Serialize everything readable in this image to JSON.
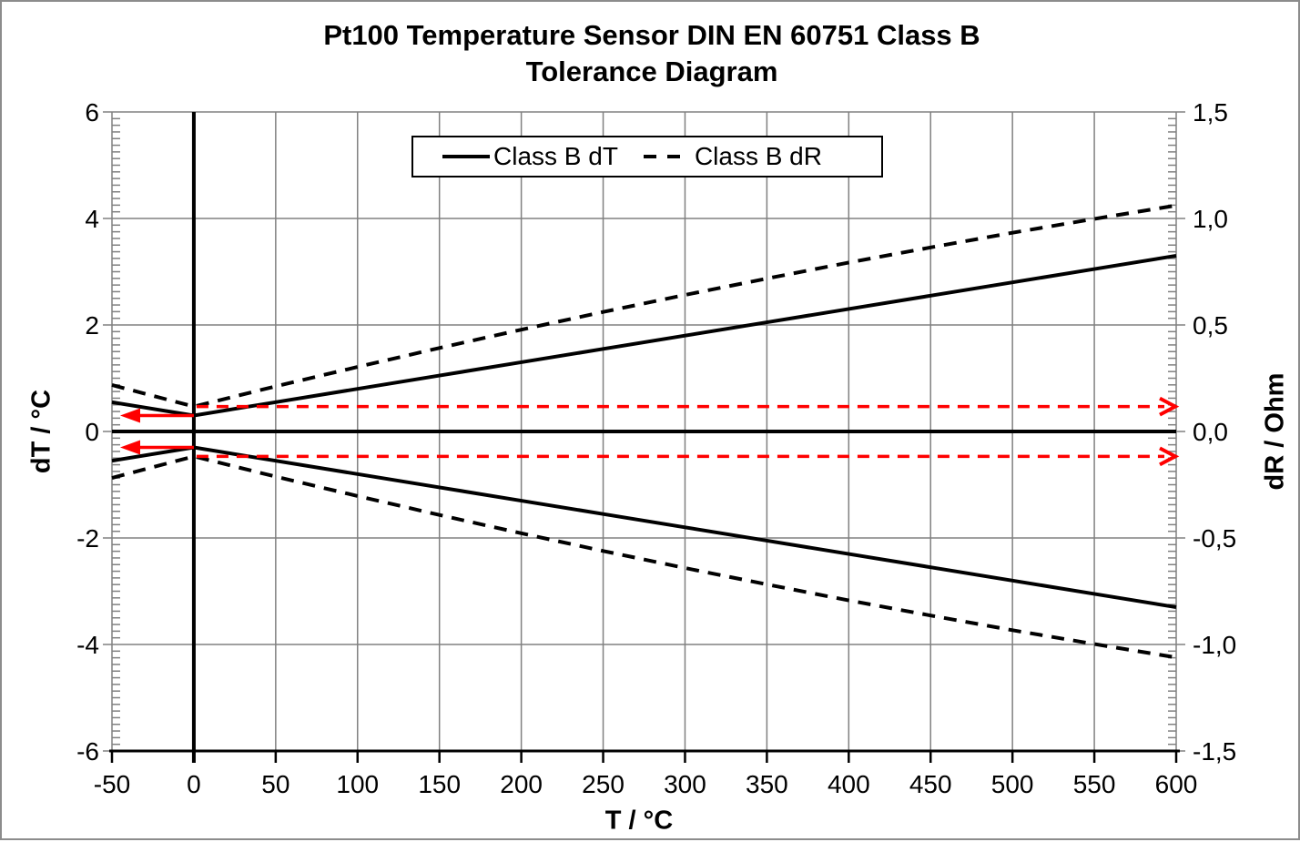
{
  "figure": {
    "title_lines": [
      "Pt100 Temperature Sensor DIN EN 60751 Class B",
      "Tolerance Diagram"
    ]
  },
  "chart_data": {
    "type": "line",
    "title": "Pt100 Temperature Sensor DIN EN 60751 Class B Tolerance Diagram",
    "xlabel": "T / °C",
    "ylabel_left": "dT / °C",
    "ylabel_right": "dR / Ohm",
    "xlim": [
      -50,
      600
    ],
    "ylim_left": [
      -6,
      6
    ],
    "ylim_right": [
      -1.5,
      1.5
    ],
    "grid": true,
    "legend_position": "top-center",
    "x_ticks": [
      -50,
      0,
      50,
      100,
      150,
      200,
      250,
      300,
      350,
      400,
      450,
      500,
      550,
      600
    ],
    "x_tick_labels": [
      "-50",
      "0",
      "50",
      "100",
      "150",
      "200",
      "250",
      "300",
      "350",
      "400",
      "450",
      "500",
      "550",
      "600"
    ],
    "y_left_ticks": [
      6,
      4,
      2,
      0,
      -2,
      -4,
      -6
    ],
    "y_left_tick_labels": [
      "6",
      "4",
      "2",
      "0",
      "-2",
      "-4",
      "-6"
    ],
    "y_right_ticks": [
      1.5,
      1.0,
      0.5,
      0.0,
      -0.5,
      -1.0,
      -1.5
    ],
    "y_right_tick_labels": [
      "1,5",
      "1,0",
      "0,5",
      "0,0",
      "-0,5",
      "-1,0",
      "-1,5"
    ],
    "y_left_minor_step": 0.125,
    "y_right_minor_step": 0.03125,
    "x": [
      -50,
      0,
      50,
      100,
      150,
      200,
      250,
      300,
      350,
      400,
      450,
      500,
      550,
      600
    ],
    "series": [
      {
        "name": "class-b-dt-upper",
        "legend": "Class B dT",
        "axis": "left",
        "style": "solid",
        "values": [
          0.55,
          0.3,
          0.55,
          0.8,
          1.05,
          1.3,
          1.55,
          1.8,
          2.05,
          2.3,
          2.55,
          2.8,
          3.05,
          3.3
        ]
      },
      {
        "name": "class-b-dt-lower",
        "legend": "Class B dT",
        "axis": "left",
        "style": "solid",
        "values": [
          -0.55,
          -0.3,
          -0.55,
          -0.8,
          -1.05,
          -1.3,
          -1.55,
          -1.8,
          -2.05,
          -2.3,
          -2.55,
          -2.8,
          -3.05,
          -3.3
        ]
      },
      {
        "name": "class-b-dr-upper",
        "legend": "Class B dR",
        "axis": "right",
        "style": "dashed",
        "values": [
          0.218,
          0.117,
          0.212,
          0.303,
          0.392,
          0.478,
          0.561,
          0.641,
          0.718,
          0.793,
          0.864,
          0.933,
          0.998,
          1.061
        ]
      },
      {
        "name": "class-b-dr-lower",
        "legend": "Class B dR",
        "axis": "right",
        "style": "dashed",
        "values": [
          -0.218,
          -0.117,
          -0.212,
          -0.303,
          -0.392,
          -0.478,
          -0.561,
          -0.641,
          -0.718,
          -0.793,
          -0.864,
          -0.933,
          -0.998,
          -1.061
        ]
      }
    ],
    "zero_lines": {
      "horizontal_y_left": 0,
      "vertical_x": 0
    },
    "annotations": [
      {
        "name": "dt-tolerance-arrow-upper",
        "type": "arrow-left",
        "style": "solid",
        "axis": "left",
        "y": 0.3,
        "x_from": 0,
        "x_to": -45
      },
      {
        "name": "dt-tolerance-arrow-lower",
        "type": "arrow-left",
        "style": "solid",
        "axis": "left",
        "y": -0.3,
        "x_from": 0,
        "x_to": -45
      },
      {
        "name": "dr-tolerance-arrow-upper",
        "type": "arrow-right",
        "style": "dashed",
        "axis": "right",
        "y": 0.117,
        "x_from": 0,
        "x_to": 600
      },
      {
        "name": "dr-tolerance-arrow-lower",
        "type": "arrow-right",
        "style": "dashed",
        "axis": "right",
        "y": -0.117,
        "x_from": 0,
        "x_to": 600
      }
    ],
    "legend": {
      "entries": [
        {
          "label": "Class B dT",
          "style": "solid"
        },
        {
          "label": "Class B dR",
          "style": "dashed"
        }
      ]
    },
    "colors": {
      "line": "#000000",
      "grid": "#808080",
      "annotation": "#ff0000",
      "background": "#ffffff",
      "border": "#8c8c8c"
    }
  }
}
